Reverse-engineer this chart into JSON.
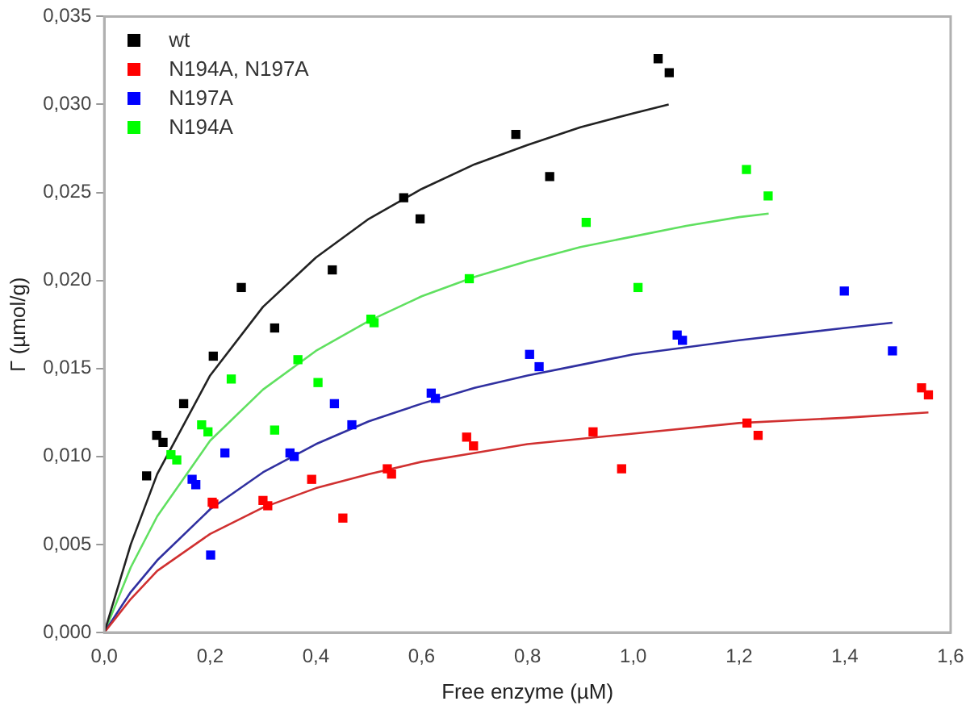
{
  "chart_data": {
    "type": "scatter",
    "xlabel": "Free enzyme (µM)",
    "ylabel": "Γ (µmol/g)",
    "xlim": [
      0,
      1.6
    ],
    "ylim": [
      0,
      0.035
    ],
    "xticks": [
      {
        "value": 0,
        "label": "0,0"
      },
      {
        "value": 0.2,
        "label": "0,2"
      },
      {
        "value": 0.4,
        "label": "0,4"
      },
      {
        "value": 0.6,
        "label": "0,6"
      },
      {
        "value": 0.8,
        "label": "0,8"
      },
      {
        "value": 1,
        "label": "1,0"
      },
      {
        "value": 1.2,
        "label": "1,2"
      },
      {
        "value": 1.4,
        "label": "1,4"
      },
      {
        "value": 1.6,
        "label": "1,6"
      }
    ],
    "yticks": [
      {
        "value": 0,
        "label": "0,000"
      },
      {
        "value": 0.005,
        "label": "0,005"
      },
      {
        "value": 0.01,
        "label": "0,010"
      },
      {
        "value": 0.015,
        "label": "0,015"
      },
      {
        "value": 0.02,
        "label": "0,020"
      },
      {
        "value": 0.025,
        "label": "0,025"
      },
      {
        "value": 0.03,
        "label": "0,030"
      },
      {
        "value": 0.035,
        "label": "0,035"
      }
    ],
    "grid": false,
    "legend": "top left",
    "marker": "square",
    "series": [
      {
        "name": "wt",
        "color": "#000000",
        "x": [
          0.08,
          0.099,
          0.111,
          0.15,
          0.206,
          0.259,
          0.322,
          0.431,
          0.566,
          0.597,
          0.778,
          0.842,
          1.047,
          1.068
        ],
        "values": [
          0.0089,
          0.0112,
          0.0108,
          0.013,
          0.0157,
          0.0196,
          0.0173,
          0.0206,
          0.0247,
          0.0235,
          0.0283,
          0.0259,
          0.0326,
          0.0318
        ]
      },
      {
        "name": "N194A, N197A",
        "color": "#ff0000",
        "x": [
          0.204,
          0.207,
          0.3,
          0.309,
          0.392,
          0.451,
          0.535,
          0.543,
          0.685,
          0.698,
          0.924,
          0.978,
          1.215,
          1.236,
          1.545,
          1.558
        ],
        "values": [
          0.0074,
          0.0073,
          0.0075,
          0.0072,
          0.0087,
          0.0065,
          0.0093,
          0.009,
          0.0111,
          0.0106,
          0.0114,
          0.0093,
          0.0119,
          0.0112,
          0.0139,
          0.0135
        ]
      },
      {
        "name": "N197A",
        "color": "#0000ff",
        "x": [
          0.166,
          0.173,
          0.201,
          0.228,
          0.351,
          0.359,
          0.435,
          0.468,
          0.618,
          0.626,
          0.804,
          0.822,
          1.083,
          1.093,
          1.399,
          1.49
        ],
        "values": [
          0.0087,
          0.0084,
          0.0044,
          0.0102,
          0.0102,
          0.01,
          0.013,
          0.0118,
          0.0136,
          0.0133,
          0.0158,
          0.0151,
          0.0169,
          0.0166,
          0.0194,
          0.016
        ]
      },
      {
        "name": "N194A",
        "color": "#00ff00",
        "x": [
          0.126,
          0.137,
          0.184,
          0.196,
          0.24,
          0.322,
          0.366,
          0.404,
          0.504,
          0.51,
          0.69,
          0.911,
          1.009,
          1.214,
          1.255
        ],
        "values": [
          0.0101,
          0.0098,
          0.0118,
          0.0114,
          0.0144,
          0.0115,
          0.0155,
          0.0142,
          0.0178,
          0.0176,
          0.0201,
          0.0233,
          0.0196,
          0.0263,
          0.0248
        ]
      },
      {
        "type": "line",
        "marker": "none",
        "color": "#222222",
        "x": [
          0,
          0.05,
          0.1,
          0.2,
          0.3,
          0.4,
          0.5,
          0.6,
          0.7,
          0.8,
          0.9,
          1.0,
          1.067
        ],
        "values": [
          0,
          0.005,
          0.009,
          0.0146,
          0.0185,
          0.0213,
          0.0235,
          0.0252,
          0.0266,
          0.0277,
          0.0287,
          0.0295,
          0.03
        ]
      },
      {
        "type": "line",
        "marker": "none",
        "color": "#d03030",
        "x": [
          0,
          0.05,
          0.1,
          0.2,
          0.3,
          0.4,
          0.5,
          0.6,
          0.7,
          0.8,
          0.9,
          1.0,
          1.2,
          1.4,
          1.558
        ],
        "values": [
          0,
          0.0019,
          0.0035,
          0.0056,
          0.0071,
          0.0082,
          0.009,
          0.0097,
          0.0102,
          0.0107,
          0.011,
          0.0113,
          0.0119,
          0.0122,
          0.0125
        ]
      },
      {
        "type": "line",
        "marker": "none",
        "color": "#3030a0",
        "x": [
          0,
          0.05,
          0.1,
          0.2,
          0.3,
          0.4,
          0.5,
          0.6,
          0.7,
          0.8,
          0.9,
          1.0,
          1.2,
          1.4,
          1.49
        ],
        "values": [
          0,
          0.0023,
          0.0041,
          0.007,
          0.0091,
          0.0107,
          0.012,
          0.013,
          0.0139,
          0.0146,
          0.0152,
          0.0158,
          0.0166,
          0.0173,
          0.0176
        ]
      },
      {
        "type": "line",
        "marker": "none",
        "color": "#60e060",
        "x": [
          0,
          0.05,
          0.1,
          0.2,
          0.3,
          0.4,
          0.5,
          0.6,
          0.7,
          0.8,
          0.9,
          1.0,
          1.1,
          1.2,
          1.256
        ],
        "values": [
          0,
          0.0037,
          0.0066,
          0.0109,
          0.0138,
          0.016,
          0.0177,
          0.0191,
          0.0202,
          0.0211,
          0.0219,
          0.0225,
          0.0231,
          0.0236,
          0.0238
        ]
      }
    ]
  }
}
